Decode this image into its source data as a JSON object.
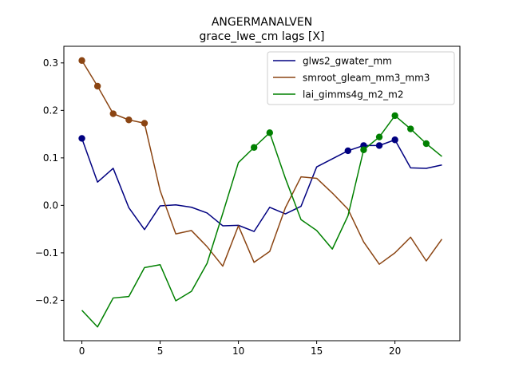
{
  "chart_data": {
    "type": "line",
    "title": "ANGERMANALVEN",
    "subtitle": "grace_lwe_cm lags [X]",
    "xlabel": "",
    "ylabel": "",
    "xlim": [
      -1.15,
      24.15
    ],
    "ylim": [
      -0.285,
      0.335
    ],
    "x_ticks": [
      0,
      5,
      10,
      15,
      20
    ],
    "y_ticks": [
      -0.2,
      -0.1,
      0.0,
      0.1,
      0.2,
      0.3
    ],
    "y_tick_labels": [
      "−0.2",
      "−0.1",
      "0.0",
      "0.1",
      "0.2",
      "0.3"
    ],
    "legend_position": "top-right",
    "grid": false,
    "x": [
      0,
      1,
      2,
      3,
      4,
      5,
      6,
      7,
      8,
      9,
      10,
      11,
      12,
      13,
      14,
      15,
      16,
      17,
      18,
      19,
      20,
      21,
      22,
      23
    ],
    "series": [
      {
        "name": "glws2_gwater_mm",
        "color": "#000080",
        "values": [
          0.141,
          0.049,
          0.078,
          -0.005,
          -0.051,
          -0.001,
          0.001,
          -0.004,
          -0.016,
          -0.043,
          -0.042,
          -0.055,
          -0.004,
          -0.018,
          -0.002,
          0.081,
          0.098,
          0.115,
          0.126,
          0.126,
          0.138,
          0.079,
          0.078,
          0.085
        ],
        "markers": [
          0,
          17,
          18,
          19,
          20
        ]
      },
      {
        "name": "smroot_gleam_mm3_mm3",
        "color": "#8B4513",
        "values": [
          0.305,
          0.251,
          0.193,
          0.18,
          0.173,
          0.031,
          -0.06,
          -0.053,
          -0.087,
          -0.128,
          -0.043,
          -0.12,
          -0.097,
          -0.005,
          0.06,
          0.057,
          0.026,
          -0.008,
          -0.077,
          -0.124,
          -0.1,
          -0.067,
          -0.117,
          -0.071
        ],
        "markers": [
          0,
          1,
          2,
          3,
          4
        ]
      },
      {
        "name": "lai_gimms4g_m2_m2",
        "color": "#008000",
        "values": [
          -0.221,
          -0.256,
          -0.195,
          -0.192,
          -0.131,
          -0.125,
          -0.201,
          -0.181,
          -0.122,
          -0.017,
          0.09,
          0.122,
          0.153,
          0.057,
          -0.03,
          -0.053,
          -0.092,
          -0.022,
          0.117,
          0.144,
          0.189,
          0.161,
          0.13,
          0.103
        ],
        "markers": [
          11,
          12,
          18,
          19,
          20,
          21,
          22
        ]
      }
    ]
  }
}
